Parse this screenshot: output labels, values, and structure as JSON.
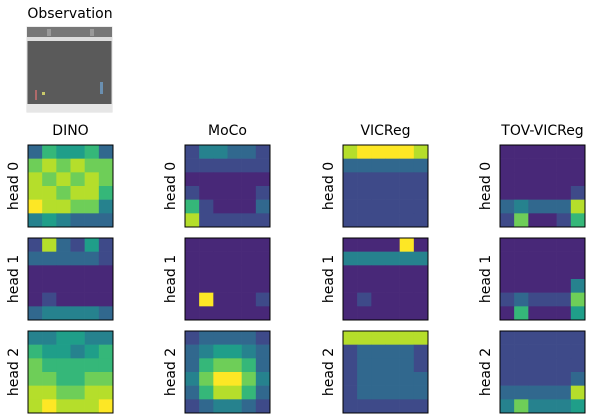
{
  "chart_data": {
    "type": "heatmap-grid",
    "title": "Observation",
    "methods": [
      "DINO",
      "MoCo",
      "VICReg",
      "TOV-VICReg"
    ],
    "heads": [
      "head 0",
      "head 1",
      "head 2"
    ],
    "cmap": "viridis",
    "zlim": [
      0,
      9
    ],
    "maps": [
      [
        [
          [
            3,
            6,
            5,
            5,
            6,
            3
          ],
          [
            7,
            8,
            7,
            8,
            7,
            7
          ],
          [
            8,
            7,
            8,
            7,
            8,
            7
          ],
          [
            8,
            8,
            7,
            8,
            8,
            6
          ],
          [
            9,
            8,
            8,
            7,
            7,
            4
          ],
          [
            4,
            5,
            4,
            3,
            3,
            3
          ]
        ],
        [
          [
            2,
            4,
            4,
            3,
            3,
            2
          ],
          [
            2,
            2,
            2,
            2,
            2,
            2
          ],
          [
            1,
            1,
            1,
            1,
            1,
            1
          ],
          [
            2,
            1,
            1,
            1,
            1,
            2
          ],
          [
            6,
            2,
            1,
            1,
            1,
            3
          ],
          [
            8,
            2,
            2,
            2,
            2,
            2
          ]
        ],
        [
          [
            8,
            9,
            9,
            9,
            9,
            8
          ],
          [
            3,
            3,
            3,
            3,
            3,
            3
          ],
          [
            2,
            2,
            2,
            2,
            2,
            2
          ],
          [
            2,
            2,
            2,
            2,
            2,
            2
          ],
          [
            2,
            2,
            2,
            2,
            2,
            2
          ],
          [
            2,
            2,
            2,
            2,
            2,
            2
          ]
        ],
        [
          [
            1,
            1,
            1,
            1,
            1,
            1
          ],
          [
            1,
            1,
            1,
            1,
            1,
            1
          ],
          [
            1,
            1,
            1,
            1,
            1,
            1
          ],
          [
            1,
            1,
            1,
            1,
            1,
            2
          ],
          [
            3,
            4,
            3,
            3,
            3,
            8
          ],
          [
            2,
            7,
            1,
            1,
            2,
            6
          ]
        ]
      ],
      [
        [
          [
            2,
            8,
            3,
            2,
            5,
            2
          ],
          [
            3,
            3,
            3,
            3,
            3,
            2
          ],
          [
            1,
            1,
            1,
            1,
            1,
            1
          ],
          [
            1,
            1,
            1,
            1,
            1,
            1
          ],
          [
            1,
            2,
            1,
            1,
            1,
            1
          ],
          [
            3,
            4,
            4,
            4,
            4,
            3
          ]
        ],
        [
          [
            1,
            1,
            1,
            1,
            1,
            1
          ],
          [
            1,
            1,
            1,
            1,
            1,
            1
          ],
          [
            1,
            1,
            1,
            1,
            1,
            1
          ],
          [
            1,
            1,
            1,
            1,
            1,
            1
          ],
          [
            1,
            9,
            1,
            1,
            1,
            2
          ],
          [
            1,
            1,
            1,
            1,
            1,
            1
          ]
        ],
        [
          [
            1,
            1,
            1,
            1,
            9,
            1
          ],
          [
            4,
            4,
            4,
            4,
            4,
            4
          ],
          [
            1,
            1,
            1,
            1,
            1,
            1
          ],
          [
            1,
            1,
            1,
            1,
            1,
            1
          ],
          [
            1,
            2,
            1,
            1,
            1,
            1
          ],
          [
            1,
            1,
            1,
            1,
            1,
            1
          ]
        ],
        [
          [
            1,
            1,
            1,
            1,
            1,
            1
          ],
          [
            1,
            1,
            1,
            1,
            1,
            1
          ],
          [
            1,
            1,
            1,
            1,
            1,
            1
          ],
          [
            1,
            1,
            1,
            1,
            1,
            4
          ],
          [
            2,
            3,
            2,
            2,
            2,
            7
          ],
          [
            1,
            6,
            1,
            1,
            1,
            5
          ]
        ]
      ],
      [
        [
          [
            4,
            4,
            5,
            5,
            4,
            4
          ],
          [
            6,
            5,
            5,
            4,
            5,
            6
          ],
          [
            7,
            6,
            6,
            6,
            6,
            6
          ],
          [
            7,
            7,
            6,
            6,
            7,
            7
          ],
          [
            8,
            8,
            7,
            7,
            8,
            8
          ],
          [
            8,
            9,
            8,
            8,
            8,
            9
          ]
        ],
        [
          [
            2,
            3,
            3,
            3,
            3,
            2
          ],
          [
            3,
            4,
            5,
            5,
            4,
            3
          ],
          [
            3,
            6,
            7,
            7,
            6,
            3
          ],
          [
            4,
            7,
            9,
            9,
            7,
            4
          ],
          [
            3,
            6,
            8,
            8,
            6,
            3
          ],
          [
            2,
            3,
            4,
            4,
            3,
            2
          ]
        ],
        [
          [
            8,
            8,
            8,
            8,
            8,
            8
          ],
          [
            2,
            3,
            3,
            3,
            3,
            2
          ],
          [
            2,
            3,
            3,
            3,
            3,
            2
          ],
          [
            2,
            3,
            3,
            3,
            3,
            3
          ],
          [
            2,
            3,
            3,
            3,
            3,
            3
          ],
          [
            2,
            2,
            2,
            2,
            2,
            2
          ]
        ],
        [
          [
            2,
            2,
            2,
            2,
            2,
            2
          ],
          [
            2,
            2,
            2,
            2,
            2,
            2
          ],
          [
            2,
            2,
            2,
            2,
            2,
            2
          ],
          [
            2,
            2,
            2,
            2,
            2,
            3
          ],
          [
            3,
            3,
            3,
            3,
            3,
            8
          ],
          [
            4,
            7,
            4,
            4,
            4,
            5
          ]
        ]
      ]
    ]
  }
}
